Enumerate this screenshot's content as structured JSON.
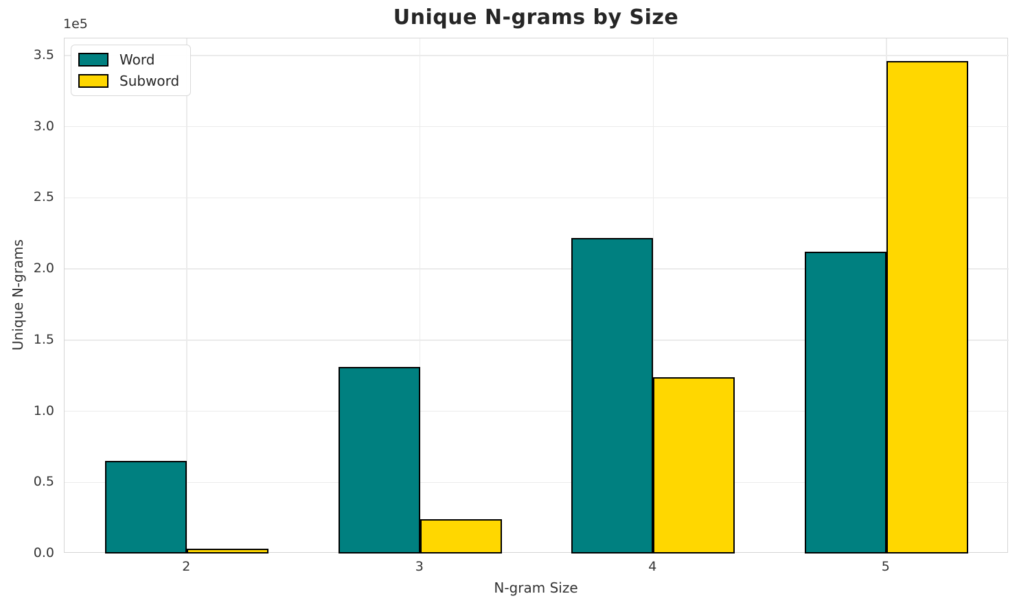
{
  "chart_data": {
    "type": "bar",
    "title": "Unique N-grams by Size",
    "xlabel": "N-gram Size",
    "ylabel": "Unique N-grams",
    "y_offset_label": "1e5",
    "categories": [
      "2",
      "3",
      "4",
      "5"
    ],
    "series": [
      {
        "name": "Word",
        "color": "#008080",
        "values": [
          65000,
          131000,
          221500,
          212000
        ]
      },
      {
        "name": "Subword",
        "color": "#FFD700",
        "values": [
          3500,
          24000,
          124000,
          346000
        ]
      }
    ],
    "bar_edge_color": "#000000",
    "bar_width_fraction": 0.35,
    "ylim": [
      0,
      362000
    ],
    "yticks": [
      0,
      50000,
      100000,
      150000,
      200000,
      250000,
      300000,
      350000
    ],
    "ytick_labels": [
      "0.0",
      "0.5",
      "1.0",
      "1.5",
      "2.0",
      "2.5",
      "3.0",
      "3.5"
    ],
    "grid": true,
    "legend_position": "upper left"
  },
  "colors": {
    "grid": "#ebebeb",
    "spine": "#d5d5d5",
    "title_text": "#262626",
    "tick_text": "#333333"
  }
}
